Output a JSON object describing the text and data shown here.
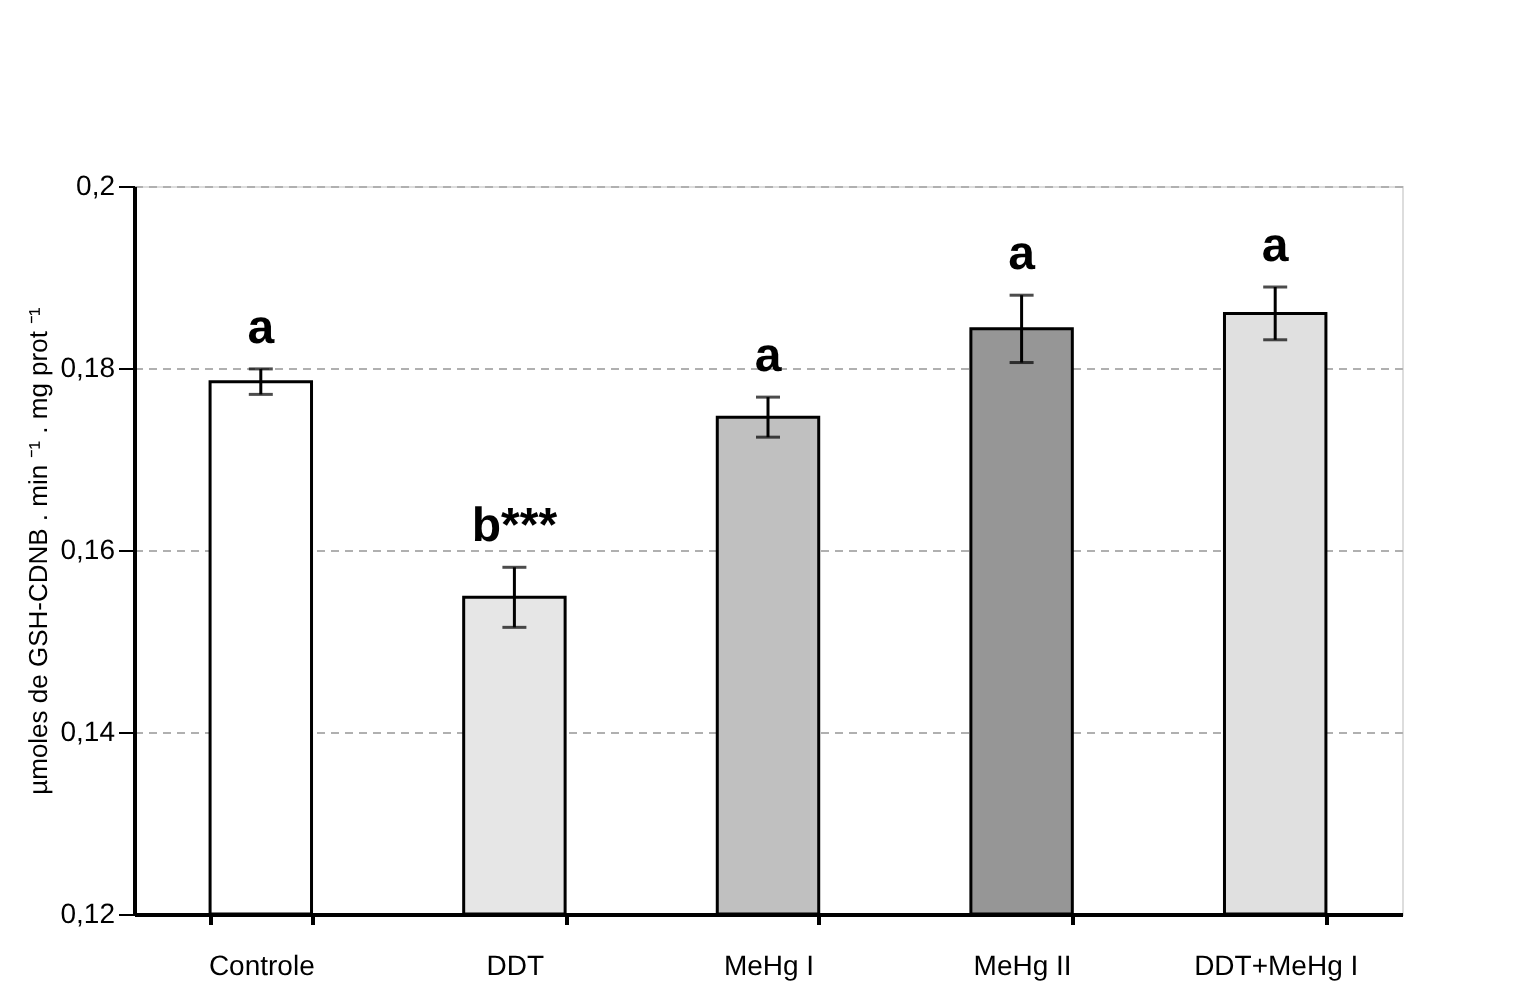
{
  "chart_data": {
    "type": "bar",
    "ylabel": "µmoles de GSH-CDNB . min ⁻¹ . mg prot ⁻¹",
    "categories": [
      "Controle",
      "DDT",
      "MeHg I",
      "MeHg II",
      "DDT+MeHg I"
    ],
    "values": [
      0.1785,
      0.1548,
      0.1746,
      0.1843,
      0.186
    ],
    "errors": [
      0.0014,
      0.0033,
      0.0022,
      0.0037,
      0.0029
    ],
    "colors": [
      "#ffffff",
      "#e6e6e6",
      "#c0c0c0",
      "#969696",
      "#e0e0e0"
    ],
    "ylim": [
      0.12,
      0.2
    ],
    "yticks": [
      {
        "value": 0.12,
        "label": "0,12"
      },
      {
        "value": 0.14,
        "label": "0,14"
      },
      {
        "value": 0.16,
        "label": "0,16"
      },
      {
        "value": 0.18,
        "label": "0,18"
      },
      {
        "value": 0.2,
        "label": "0,2"
      }
    ],
    "grid": "y",
    "annotations": [
      "a",
      "b***",
      "a",
      "a",
      "a"
    ]
  }
}
